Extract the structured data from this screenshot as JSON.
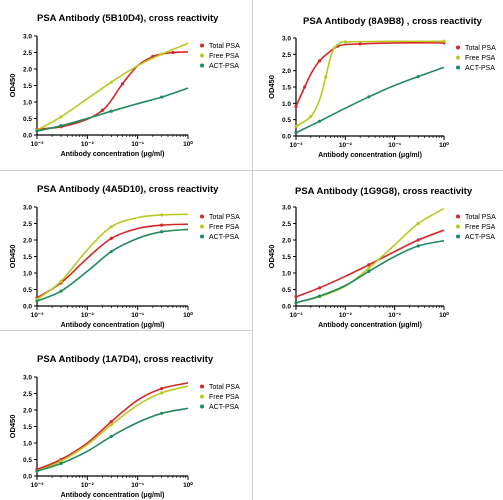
{
  "colors": {
    "total": "#d62728",
    "free": "#b8c920",
    "act": "#1f8a5c",
    "axis": "#000000"
  },
  "chart_data": [
    {
      "type": "line",
      "title": "PSA Antibody (5B10D4), cross reactivity",
      "xlabel": "Antibody concentration (μg/ml)",
      "ylabel": "OD450",
      "xscale": "log",
      "xlim": [
        0.001,
        1
      ],
      "ylim": [
        0,
        3.0
      ],
      "x_ticks": [
        "10⁻³",
        "10⁻²",
        "10⁻¹",
        "10⁰"
      ],
      "y_ticks": [
        "0.0",
        "0.5",
        "1.0",
        "1.5",
        "2.0",
        "2.5",
        "3.0"
      ],
      "legend": "right",
      "series": [
        {
          "name": "Total PSA",
          "x": [
            0.001,
            0.003,
            0.01,
            0.02,
            0.03,
            0.05,
            0.1,
            0.2,
            0.3,
            0.5,
            1
          ],
          "y": [
            0.18,
            0.25,
            0.48,
            0.75,
            1.05,
            1.55,
            2.1,
            2.38,
            2.45,
            2.5,
            2.52
          ]
        },
        {
          "name": "Free PSA",
          "x": [
            0.001,
            0.003,
            0.01,
            0.03,
            0.1,
            0.3,
            1
          ],
          "y": [
            0.15,
            0.55,
            1.1,
            1.6,
            2.1,
            2.45,
            2.78
          ]
        },
        {
          "name": "ACT-PSA",
          "x": [
            0.001,
            0.003,
            0.01,
            0.03,
            0.1,
            0.3,
            1
          ],
          "y": [
            0.12,
            0.28,
            0.5,
            0.72,
            0.95,
            1.15,
            1.42
          ]
        }
      ]
    },
    {
      "type": "line",
      "title": "PSA Antibody (8A9B8) , cross reactivity",
      "xlabel": "Antibody concentration (μg/ml)",
      "ylabel": "OD450",
      "xscale": "log",
      "xlim": [
        0.001,
        1
      ],
      "ylim": [
        0,
        3.0
      ],
      "x_ticks": [
        "10⁻³",
        "10⁻²",
        "10⁻¹",
        "10⁰"
      ],
      "y_ticks": [
        "0.0",
        "0.5",
        "1.0",
        "1.5",
        "2.0",
        "2.5",
        "3.0"
      ],
      "legend": "right",
      "series": [
        {
          "name": "Total PSA",
          "x": [
            0.001,
            0.0015,
            0.002,
            0.003,
            0.005,
            0.007,
            0.01,
            0.02,
            0.1,
            1
          ],
          "y": [
            0.9,
            1.5,
            1.9,
            2.3,
            2.6,
            2.75,
            2.8,
            2.82,
            2.85,
            2.85
          ]
        },
        {
          "name": "Free PSA",
          "x": [
            0.001,
            0.002,
            0.003,
            0.004,
            0.005,
            0.006,
            0.008,
            0.01,
            0.1,
            1
          ],
          "y": [
            0.3,
            0.6,
            1.1,
            1.8,
            2.4,
            2.7,
            2.85,
            2.88,
            2.9,
            2.9
          ]
        },
        {
          "name": "ACT-PSA",
          "x": [
            0.001,
            0.003,
            0.01,
            0.03,
            0.1,
            0.3,
            1
          ],
          "y": [
            0.1,
            0.45,
            0.85,
            1.2,
            1.55,
            1.82,
            2.1
          ]
        }
      ]
    },
    {
      "type": "line",
      "title": "PSA Antibody (4A5D10), cross reactivity",
      "xlabel": "Antibody concentration (μg/ml)",
      "ylabel": "OD450",
      "xscale": "log",
      "xlim": [
        0.001,
        1
      ],
      "ylim": [
        0,
        3.0
      ],
      "x_ticks": [
        "10⁻³",
        "10⁻²",
        "10⁻¹",
        "10⁰"
      ],
      "y_ticks": [
        "0.0",
        "0.5",
        "1.0",
        "1.5",
        "2.0",
        "2.5",
        "3.0"
      ],
      "legend": "right",
      "series": [
        {
          "name": "Total PSA",
          "x": [
            0.001,
            0.003,
            0.01,
            0.03,
            0.1,
            0.3,
            1
          ],
          "y": [
            0.25,
            0.7,
            1.45,
            2.05,
            2.35,
            2.45,
            2.48
          ]
        },
        {
          "name": "Free PSA",
          "x": [
            0.001,
            0.003,
            0.01,
            0.03,
            0.1,
            0.3,
            1
          ],
          "y": [
            0.2,
            0.75,
            1.7,
            2.4,
            2.68,
            2.76,
            2.78
          ]
        },
        {
          "name": "ACT-PSA",
          "x": [
            0.001,
            0.003,
            0.01,
            0.03,
            0.1,
            0.3,
            1
          ],
          "y": [
            0.15,
            0.45,
            1.05,
            1.65,
            2.05,
            2.25,
            2.32
          ]
        }
      ]
    },
    {
      "type": "line",
      "title": "PSA Antibody (1G9G8), cross reactivity",
      "xlabel": "Antibody concentration (μg/ml)",
      "ylabel": "OD450",
      "xscale": "log",
      "xlim": [
        0.001,
        1
      ],
      "ylim": [
        0,
        3.0
      ],
      "x_ticks": [
        "10⁻³",
        "10⁻²",
        "10⁻¹",
        "10⁰"
      ],
      "y_ticks": [
        "0.0",
        "0.5",
        "1.0",
        "1.5",
        "2.0",
        "2.5",
        "3.0"
      ],
      "legend": "right",
      "series": [
        {
          "name": "Total PSA",
          "x": [
            0.001,
            0.003,
            0.01,
            0.03,
            0.1,
            0.3,
            1
          ],
          "y": [
            0.28,
            0.55,
            0.9,
            1.25,
            1.65,
            2.0,
            2.3
          ]
        },
        {
          "name": "Free PSA",
          "x": [
            0.001,
            0.003,
            0.01,
            0.03,
            0.1,
            0.3,
            1
          ],
          "y": [
            0.1,
            0.28,
            0.6,
            1.15,
            1.85,
            2.5,
            2.95
          ]
        },
        {
          "name": "ACT-PSA",
          "x": [
            0.001,
            0.003,
            0.01,
            0.03,
            0.1,
            0.3,
            1
          ],
          "y": [
            0.1,
            0.3,
            0.62,
            1.05,
            1.5,
            1.82,
            1.98
          ]
        }
      ]
    },
    {
      "type": "line",
      "title": "PSA Antibody (1A7D4), cross reactivity",
      "xlabel": "Antibody concentration (μg/ml)",
      "ylabel": "OD450",
      "xscale": "log",
      "xlim": [
        0.001,
        1
      ],
      "ylim": [
        0,
        3.0
      ],
      "x_ticks": [
        "10⁻³",
        "10⁻²",
        "10⁻¹",
        "10⁰"
      ],
      "y_ticks": [
        "0.0",
        "0.5",
        "1.0",
        "1.5",
        "2.0",
        "2.5",
        "3.0"
      ],
      "legend": "right",
      "series": [
        {
          "name": "Total PSA",
          "x": [
            0.001,
            0.003,
            0.01,
            0.03,
            0.1,
            0.3,
            1
          ],
          "y": [
            0.2,
            0.5,
            1.0,
            1.65,
            2.3,
            2.65,
            2.82
          ]
        },
        {
          "name": "Free PSA",
          "x": [
            0.001,
            0.003,
            0.01,
            0.03,
            0.1,
            0.3,
            1
          ],
          "y": [
            0.15,
            0.45,
            0.95,
            1.55,
            2.15,
            2.52,
            2.72
          ]
        },
        {
          "name": "ACT-PSA",
          "x": [
            0.001,
            0.003,
            0.01,
            0.03,
            0.1,
            0.3,
            1
          ],
          "y": [
            0.15,
            0.38,
            0.75,
            1.2,
            1.62,
            1.9,
            2.05
          ]
        }
      ]
    }
  ]
}
